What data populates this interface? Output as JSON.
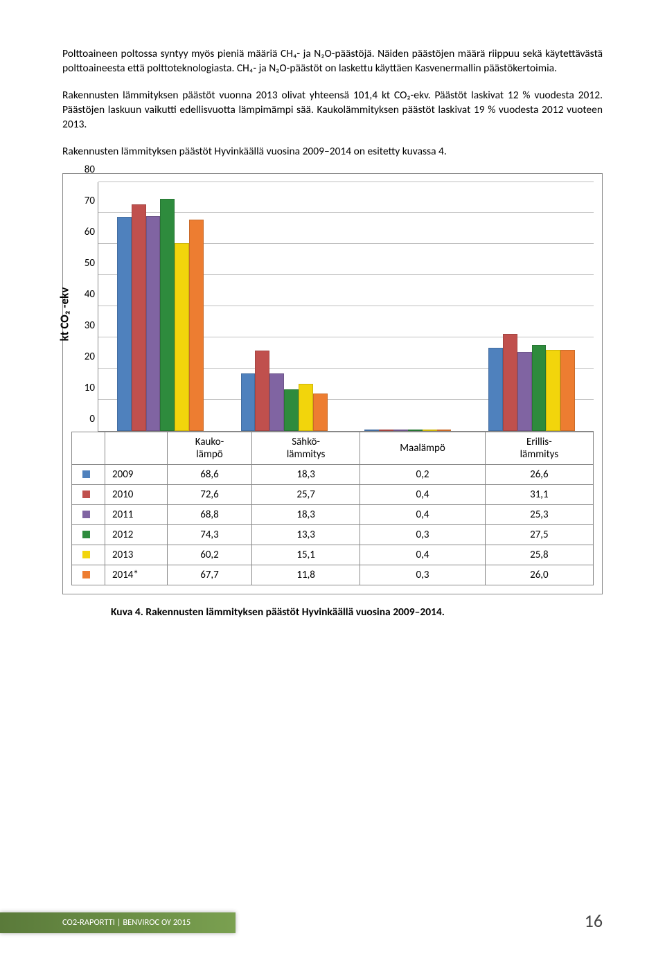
{
  "paragraphs": {
    "p1": "Polttoaineen poltossa syntyy myös pieniä määriä CH₄- ja N₂O-päästöjä. Näiden päästöjen määrä riippuu sekä käytettävästä polttoaineesta että polttoteknologiasta. CH₄- ja N₂O-päästöt on laskettu käyttäen Kasvenermallin päästökertoimia.",
    "p2": "Rakennusten lämmityksen päästöt vuonna 2013 olivat yhteensä 101,4 kt CO₂-ekv. Päästöt laskivat 12 % vuodesta 2012. Päästöjen laskuun vaikutti edellisvuotta lämpimämpi sää. Kaukolämmityksen päästöt laskivat 19 % vuodesta 2012 vuoteen 2013.",
    "p3": "Rakennusten lämmityksen päästöt Hyvinkäällä vuosina 2009–2014 on esitetty kuvassa 4."
  },
  "chart": {
    "y_axis_label": "kt CO₂ -ekv",
    "y_max": 80,
    "y_tick_step": 10,
    "y_ticks": [
      0,
      10,
      20,
      30,
      40,
      50,
      60,
      70,
      80
    ],
    "categories": [
      "Kauko-\nlämpö",
      "Sähkö-\nlämmitys",
      "Maalämpö",
      "Erillis-\nlämmitys"
    ],
    "series": [
      {
        "label": "2009",
        "color": "#4f81bd",
        "values": [
          68.6,
          18.3,
          0.2,
          26.6
        ]
      },
      {
        "label": "2010",
        "color": "#c0504d",
        "values": [
          72.6,
          25.7,
          0.4,
          31.1
        ]
      },
      {
        "label": "2011",
        "color": "#8064a2",
        "values": [
          68.8,
          18.3,
          0.4,
          25.3
        ]
      },
      {
        "label": "2012",
        "color": "#2e8b3d",
        "values": [
          74.3,
          13.3,
          0.3,
          27.5
        ]
      },
      {
        "label": "2013",
        "color": "#f2d50c",
        "values": [
          60.2,
          15.1,
          0.4,
          25.8
        ]
      },
      {
        "label": "2014*",
        "color": "#ed7d31",
        "values": [
          67.7,
          11.8,
          0.3,
          26.0
        ]
      }
    ],
    "caption": "Kuva 4. Rakennusten lämmityksen päästöt Hyvinkäällä vuosina 2009–2014."
  },
  "footer": {
    "text": "CO2-RAPORTTI | BENVIROC OY 2015",
    "page_number": "16"
  }
}
